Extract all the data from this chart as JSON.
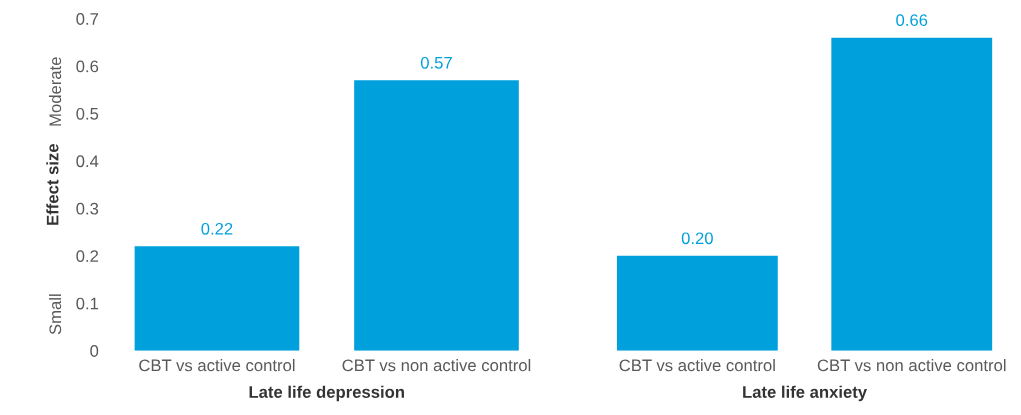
{
  "chart_data": [
    {
      "type": "bar",
      "categories": [
        "CBT vs active control",
        "CBT vs non active control"
      ],
      "values": [
        0.22,
        0.57
      ],
      "value_labels": [
        "0.22",
        "0.57"
      ],
      "color": "#00a0dc",
      "xlabel": "Late life depression",
      "ylabel": "Effect size",
      "ylim": [
        0,
        0.7
      ],
      "yticks": [
        0,
        0.1,
        0.2,
        0.3,
        0.4,
        0.5,
        0.6,
        0.7
      ],
      "grid": false,
      "legend": false,
      "annotations": [
        "Small",
        "Moderate"
      ]
    },
    {
      "type": "bar",
      "categories": [
        "CBT vs active control",
        "CBT vs non active control"
      ],
      "values": [
        0.2,
        0.66
      ],
      "value_labels": [
        "0.20",
        "0.66"
      ],
      "color": "#00a0dc",
      "xlabel": "Late life anxiety",
      "ylim": [
        0,
        0.7
      ],
      "yticks": [
        0,
        0.1,
        0.2,
        0.3,
        0.4,
        0.5,
        0.6,
        0.7
      ],
      "tick_labels": "x",
      "grid": false,
      "legend": false
    }
  ]
}
